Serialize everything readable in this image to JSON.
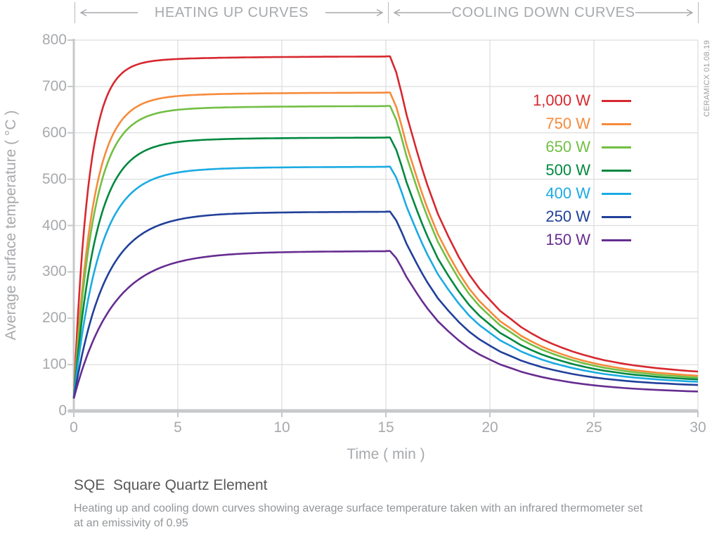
{
  "header": {
    "sections": [
      {
        "label": "HEATING UP CURVES"
      },
      {
        "label": "COOLING DOWN CURVES"
      }
    ]
  },
  "y_axis": {
    "title": "Average surface temperature ( °C )",
    "ticks": [
      0,
      100,
      200,
      300,
      400,
      500,
      600,
      700,
      800
    ]
  },
  "x_axis": {
    "title": "Time ( min )",
    "ticks": [
      0,
      5,
      10,
      15,
      20,
      25,
      30
    ]
  },
  "legend": {
    "items": [
      {
        "label": "1,000 W",
        "color": "#d7282f"
      },
      {
        "label": "750 W",
        "color": "#f68b3c"
      },
      {
        "label": "650 W",
        "color": "#72bf44"
      },
      {
        "label": "500 W",
        "color": "#00883f"
      },
      {
        "label": "400 W",
        "color": "#1babe2"
      },
      {
        "label": "250 W",
        "color": "#21409a"
      },
      {
        "label": "150 W",
        "color": "#662d91"
      }
    ]
  },
  "watermark": "CERAMICX 01.08.19",
  "footer": {
    "title": "SQE  Square Quartz Element",
    "description_lines": [
      "Heating up and cooling down curves showing average surface temperature taken with an infrared thermometer set",
      "at an emissivity of 0.95"
    ]
  },
  "colors": {
    "grid": "#dcddde",
    "axis": "#c7c8ca",
    "text_gray": "#a7a9ac"
  },
  "chart_data": {
    "type": "line",
    "title": "SQE Square Quartz Element heating up and cooling down curves",
    "xlabel": "Time ( min )",
    "ylabel": "Average surface temperature ( °C )",
    "x_range": [
      0,
      30
    ],
    "y_range": [
      0,
      800
    ],
    "grid": true,
    "legend_position": "upper right",
    "heat_phase_end_min": 15,
    "plateau_drift_c": 18,
    "series": [
      {
        "name": "1,000 W",
        "power_w": 1000,
        "color": "#d7282f",
        "start_c": 27,
        "plateau_c": 765,
        "end_c": 85,
        "tau_heat_min": 0.7
      },
      {
        "name": "750 W",
        "power_w": 750,
        "color": "#f68b3c",
        "start_c": 27,
        "plateau_c": 687,
        "end_c": 76,
        "tau_heat_min": 0.9
      },
      {
        "name": "650 W",
        "power_w": 650,
        "color": "#72bf44",
        "start_c": 27,
        "plateau_c": 658,
        "end_c": 72,
        "tau_heat_min": 0.95
      },
      {
        "name": "500 W",
        "power_w": 500,
        "color": "#00883f",
        "start_c": 27,
        "plateau_c": 590,
        "end_c": 68,
        "tau_heat_min": 1.05
      },
      {
        "name": "400 W",
        "power_w": 400,
        "color": "#1babe2",
        "start_c": 27,
        "plateau_c": 527,
        "end_c": 63,
        "tau_heat_min": 1.2
      },
      {
        "name": "250 W",
        "power_w": 250,
        "color": "#21409a",
        "start_c": 27,
        "plateau_c": 430,
        "end_c": 56,
        "tau_heat_min": 1.45
      },
      {
        "name": "150 W",
        "power_w": 150,
        "color": "#662d91",
        "start_c": 27,
        "plateau_c": 345,
        "end_c": 42,
        "tau_heat_min": 1.8
      }
    ],
    "cooling_decay_fraction": [
      [
        0,
        1
      ],
      [
        0.2,
        1
      ],
      [
        0.5,
        0.949
      ],
      [
        0.75,
        0.884
      ],
      [
        1,
        0.813
      ],
      [
        1.25,
        0.755
      ],
      [
        1.5,
        0.697
      ],
      [
        1.75,
        0.642
      ],
      [
        2,
        0.591
      ],
      [
        2.5,
        0.5
      ],
      [
        3,
        0.429
      ],
      [
        3.5,
        0.364
      ],
      [
        4,
        0.308
      ],
      [
        4.5,
        0.263
      ],
      [
        5,
        0.227
      ],
      [
        5.5,
        0.192
      ],
      [
        6,
        0.167
      ],
      [
        6.5,
        0.141
      ],
      [
        7,
        0.121
      ],
      [
        7.5,
        0.103
      ],
      [
        8,
        0.088
      ],
      [
        8.5,
        0.075
      ],
      [
        9,
        0.063
      ],
      [
        9.5,
        0.053
      ],
      [
        10,
        0.044
      ],
      [
        10.5,
        0.036
      ],
      [
        11,
        0.03
      ],
      [
        11.5,
        0.024
      ],
      [
        12,
        0.019
      ],
      [
        12.5,
        0.015
      ],
      [
        13,
        0.011
      ],
      [
        13.5,
        0.008
      ],
      [
        14,
        0.005
      ],
      [
        14.5,
        0.002
      ],
      [
        15,
        0
      ]
    ]
  }
}
